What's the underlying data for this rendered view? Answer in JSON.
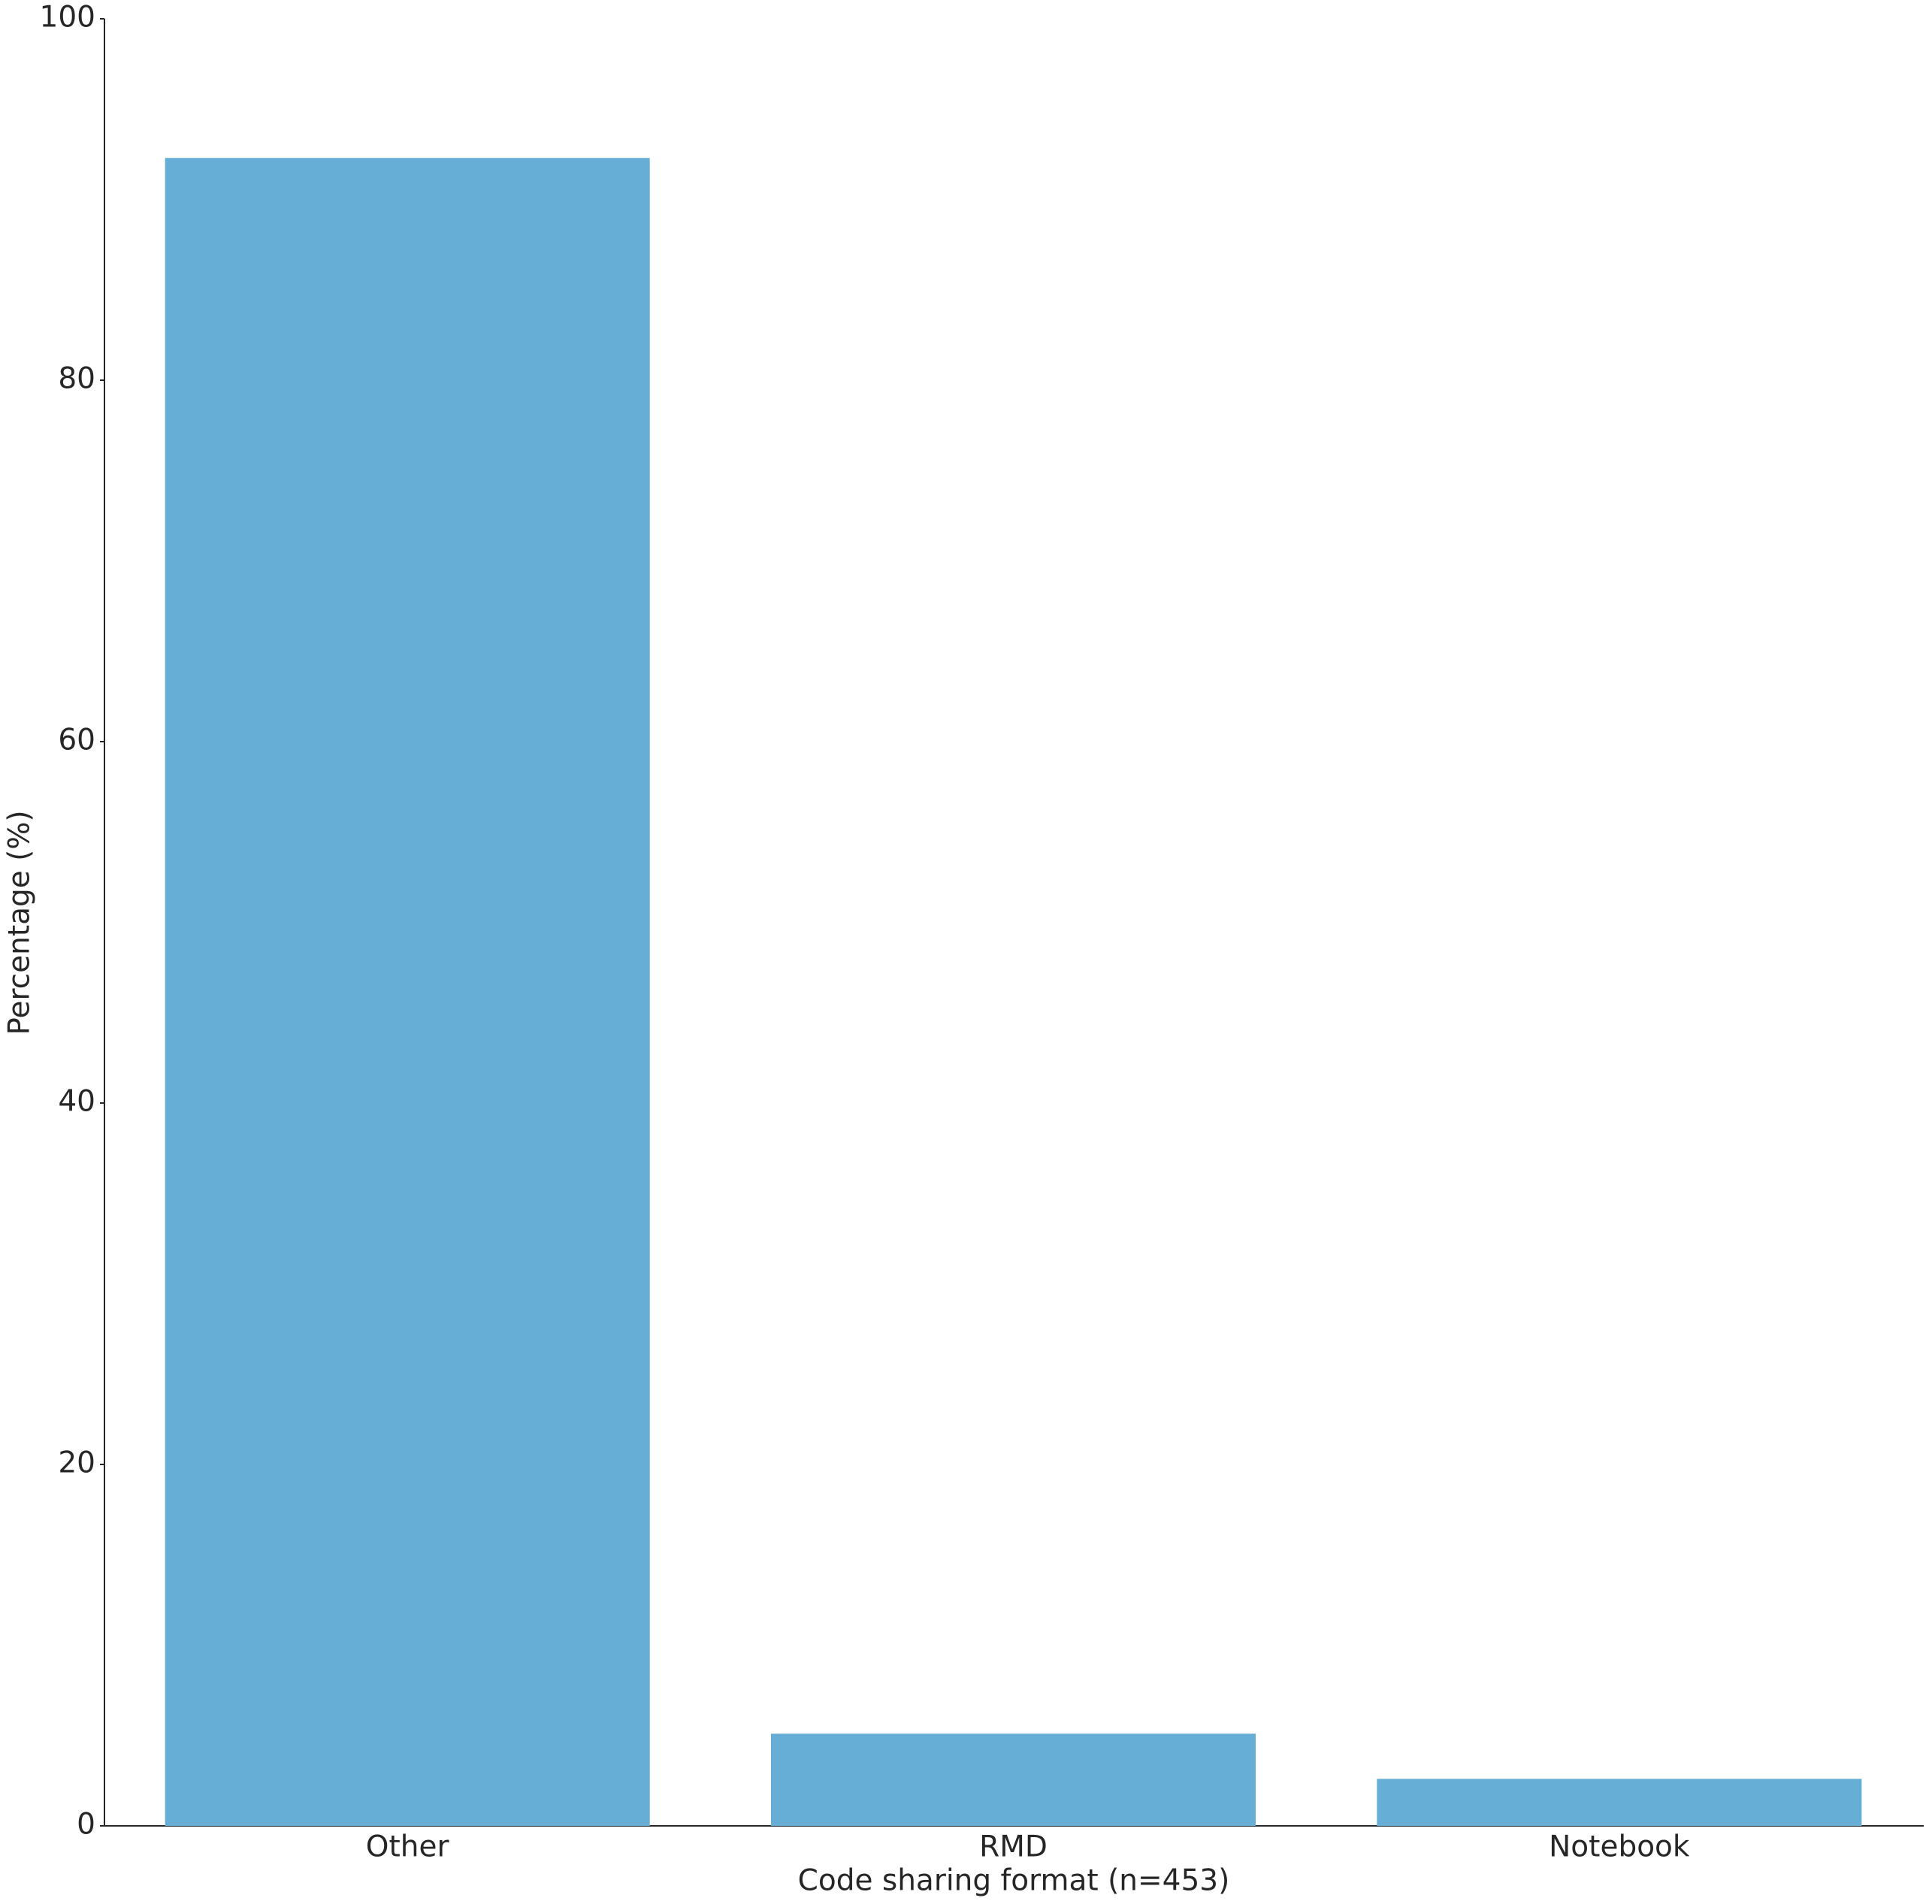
{
  "chart_data": {
    "type": "bar",
    "x_label": "Code sharing format (n=453)",
    "y_label": "Percentage (%)",
    "categories": [
      "Other",
      "RMD",
      "Notebook"
    ],
    "values": [
      92.3,
      5.1,
      2.6
    ],
    "color": "#67aed6",
    "ylim": [
      0,
      100
    ],
    "yticks": [
      0,
      20,
      40,
      60,
      80,
      100
    ],
    "grid": false
  }
}
